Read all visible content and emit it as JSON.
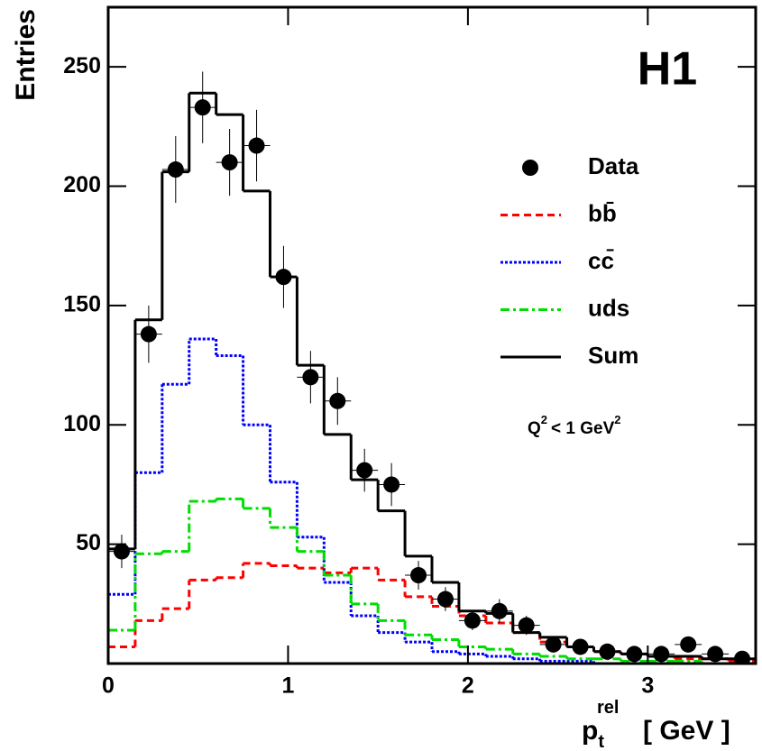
{
  "chart_data": {
    "type": "histogram",
    "y_label": "Entries",
    "x_label": [
      "p",
      "t",
      "rel",
      "[ GeV ]"
    ],
    "experiment": "H1",
    "experiment_color": "#ff0000",
    "annotation": [
      "Q",
      "2",
      "< 1 GeV",
      "2"
    ],
    "bins": [
      0,
      0.15,
      0.3,
      0.45,
      0.6,
      0.75,
      0.9,
      1.05,
      1.2,
      1.35,
      1.5,
      1.65,
      1.8,
      1.95,
      2.1,
      2.25,
      2.4,
      2.55,
      2.7,
      2.85,
      3,
      3.15,
      3.3,
      3.45,
      3.6
    ],
    "series": [
      {
        "name": "Data",
        "color": "#000000",
        "style": "points",
        "values": [
          47,
          138,
          207,
          233,
          210,
          217,
          162,
          120,
          110,
          81,
          75,
          37,
          27,
          18,
          22,
          16,
          8,
          7,
          5,
          4,
          4,
          8,
          4,
          2
        ],
        "errors": [
          7,
          12,
          14,
          15,
          14,
          15,
          13,
          11,
          10,
          9,
          9,
          6,
          5,
          4,
          5,
          4,
          3,
          3,
          2,
          2,
          2,
          3,
          2,
          1
        ]
      },
      {
        "name": "bb̄",
        "color": "#ff0000",
        "style": "dashed",
        "values": [
          7,
          18,
          23,
          35,
          36,
          42,
          41,
          40,
          38,
          40,
          35,
          28,
          24,
          20,
          17,
          13,
          9,
          7,
          5,
          4,
          3,
          2,
          2,
          1
        ]
      },
      {
        "name": "cc̄",
        "color": "#0000ff",
        "style": "dotted",
        "values": [
          29,
          80,
          117,
          136,
          129,
          100,
          76,
          53,
          34,
          20,
          13,
          9,
          5,
          4,
          3,
          2,
          1,
          1,
          0,
          0,
          0,
          0,
          0,
          0
        ]
      },
      {
        "name": "uds",
        "color": "#00dd00",
        "style": "dashdot",
        "values": [
          14,
          46,
          47,
          68,
          69,
          65,
          57,
          47,
          37,
          25,
          18,
          12,
          10,
          7,
          6,
          4,
          3,
          2,
          2,
          1,
          1,
          1,
          0,
          0
        ]
      },
      {
        "name": "Sum",
        "color": "#000000",
        "style": "solid",
        "values": [
          48,
          144,
          206,
          239,
          230,
          198,
          162,
          125,
          96,
          77,
          64,
          45,
          34,
          22,
          21,
          13,
          11,
          7,
          5,
          4,
          3,
          3,
          2,
          2
        ]
      }
    ],
    "xlim": [
      0,
      3.6
    ],
    "ylim": [
      0,
      275
    ],
    "xticks": [
      0,
      1,
      2,
      3
    ],
    "yticks": [
      50,
      100,
      150,
      200,
      250
    ]
  }
}
